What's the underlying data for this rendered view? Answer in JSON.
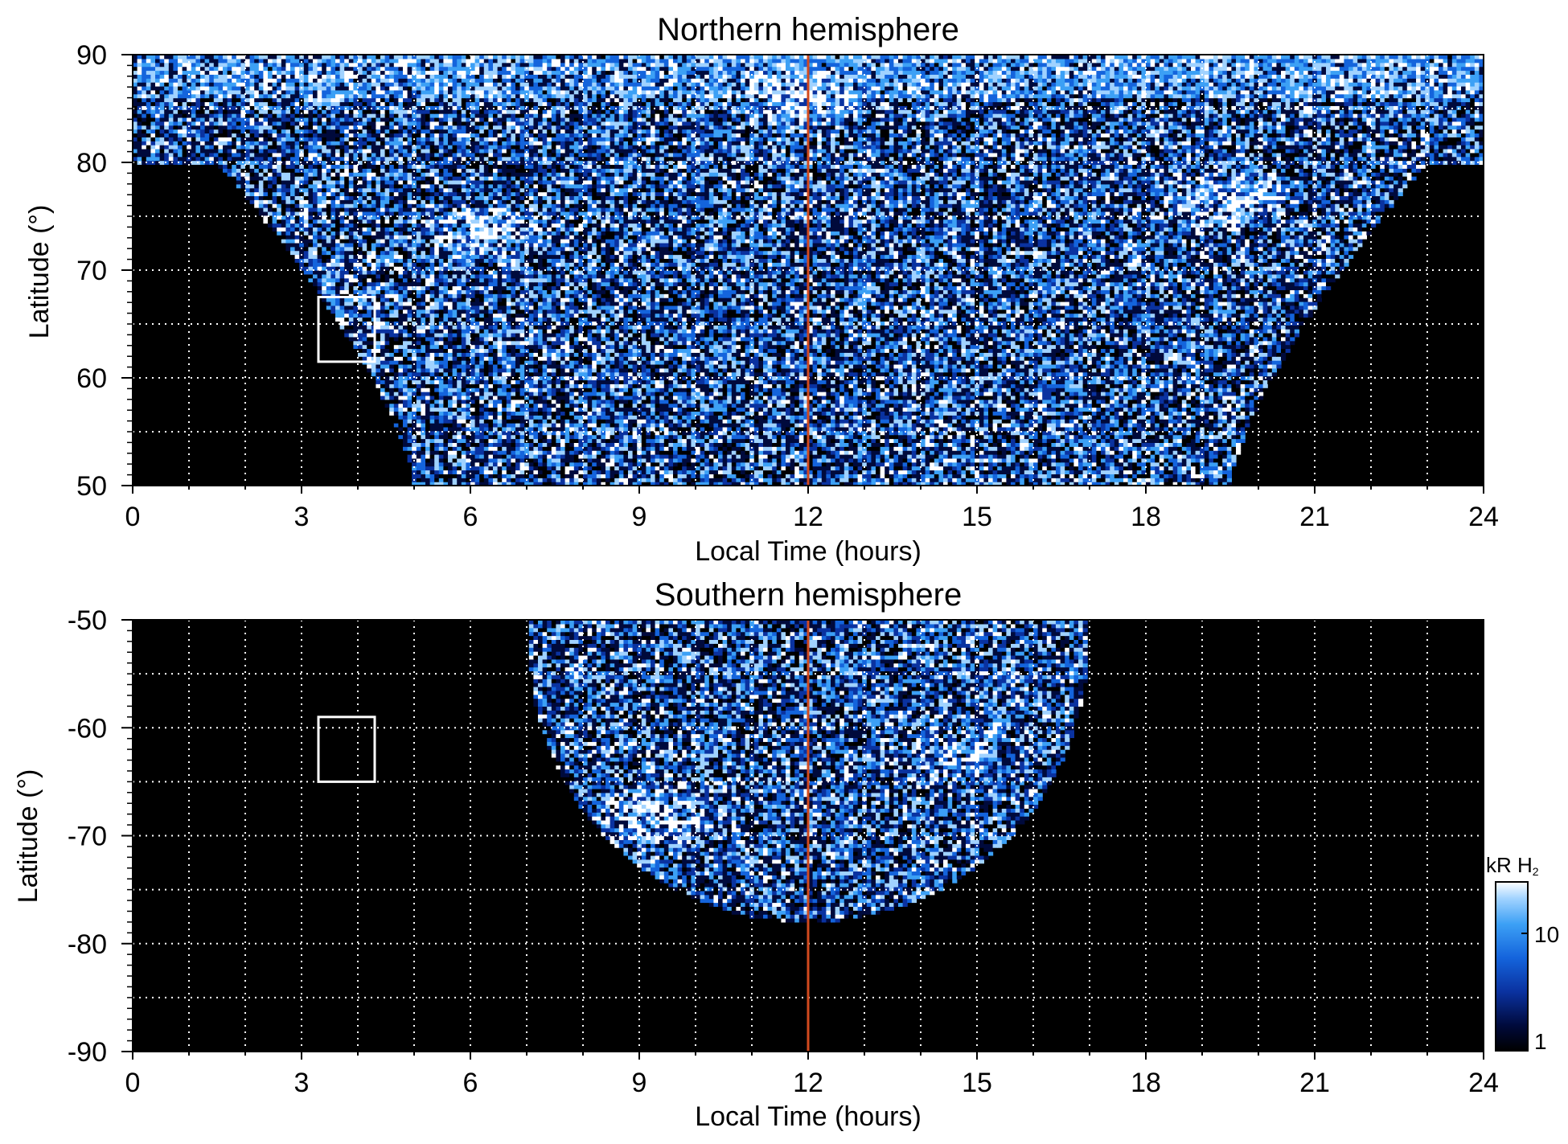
{
  "chart_data": [
    {
      "type": "heatmap",
      "title": "Northern hemisphere",
      "xlabel": "Local Time (hours)",
      "ylabel": "Latitude (°)",
      "xlim": [
        0,
        24
      ],
      "ylim": [
        50,
        90
      ],
      "x_ticks": [
        "0",
        "3",
        "6",
        "9",
        "12",
        "15",
        "18",
        "21",
        "24"
      ],
      "y_ticks": [
        "50",
        "60",
        "70",
        "80",
        "90"
      ],
      "grid": true,
      "marker_line": {
        "x": 12,
        "color": "#d24a1e"
      },
      "box": {
        "x": [
          3.3,
          4.3
        ],
        "y": [
          61.5,
          67.5
        ]
      },
      "coverage": {
        "polar_cap_above_lat": 80,
        "top_lat": 90,
        "bottom_x_range": [
          5,
          19.5
        ],
        "high_lat_x_range": [
          1.5,
          23
        ]
      },
      "bright_features": [
        {
          "x": 6.3,
          "y": 73.5,
          "intensity": "high"
        },
        {
          "x": 19.5,
          "y": 76.5,
          "intensity": "high"
        },
        {
          "x": 11.9,
          "y": 86,
          "intensity": "high"
        }
      ]
    },
    {
      "type": "heatmap",
      "title": "Southern hemisphere",
      "xlabel": "Local Time (hours)",
      "ylabel": "Latitude (°)",
      "xlim": [
        0,
        24
      ],
      "ylim": [
        -90,
        -50
      ],
      "x_ticks": [
        "0",
        "3",
        "6",
        "9",
        "12",
        "15",
        "18",
        "21",
        "24"
      ],
      "y_ticks": [
        "-90",
        "-80",
        "-70",
        "-60",
        "-50"
      ],
      "grid": true,
      "marker_line": {
        "x": 12,
        "color": "#d24a1e"
      },
      "box": {
        "x": [
          3.3,
          4.3
        ],
        "y": [
          -65,
          -59
        ]
      },
      "coverage": {
        "top_x_range": [
          7,
          17
        ],
        "center_x": 12,
        "bottom_lat": -78
      },
      "bright_features": [
        {
          "x": 9.2,
          "y": -68,
          "intensity": "high"
        },
        {
          "x": 14.5,
          "y": -63,
          "intensity": "medium"
        }
      ]
    }
  ],
  "colorbar": {
    "label_main": "kR H",
    "label_sub": "2",
    "ticks": [
      "1",
      "10"
    ],
    "scale": "log",
    "range": [
      1,
      20
    ],
    "colors": [
      "#000000",
      "#000a3c",
      "#0a32a0",
      "#1464dc",
      "#3ca0f5",
      "#a0d2ff",
      "#ffffff"
    ]
  }
}
